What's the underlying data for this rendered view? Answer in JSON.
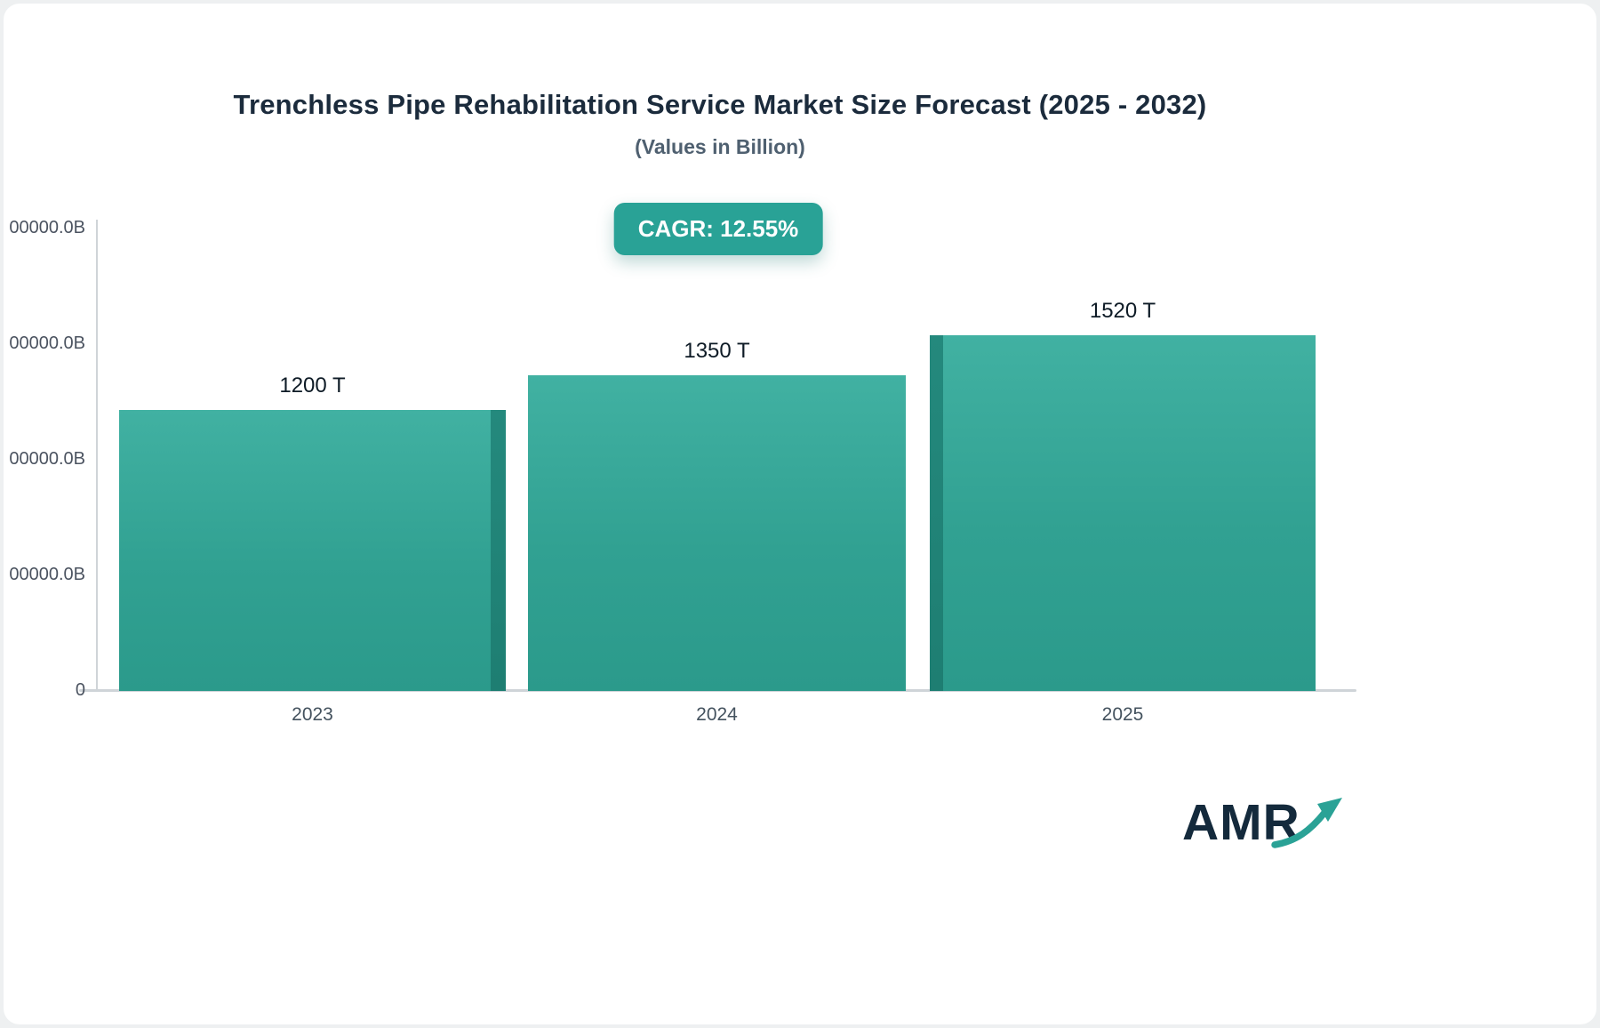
{
  "title": "Trenchless Pipe Rehabilitation Service Market Size Forecast (2025 - 2032)",
  "subtitle": "(Values in Billion)",
  "badge": {
    "label": "CAGR: 12.55%"
  },
  "chart_data": {
    "type": "bar",
    "title": "Trenchless Pipe Rehabilitation Service Market Size Forecast (2025 - 2032)",
    "subtitle": "(Values in Billion)",
    "categories": [
      "2023",
      "2024",
      "2025"
    ],
    "values": [
      1200,
      1350,
      1520
    ],
    "value_labels": [
      "1200 T",
      "1350 T",
      "1520 T"
    ],
    "value_unit": "T",
    "cagr": "12.55%",
    "xlabel": "",
    "ylabel": "",
    "y_ticks": [
      "00000.0B",
      "00000.0B",
      "00000.0B",
      "00000.0B",
      "0"
    ],
    "ylim": [
      0,
      1976
    ],
    "grid": false,
    "legend": false
  },
  "colors": {
    "bar_top": "#41b1a2",
    "bar_bottom": "#2b9a8b",
    "bar_side": "#1e7e72",
    "badge_bg": "#29a296",
    "title_text": "#1b2b3c",
    "subtitle_text": "#4f6070",
    "axis_line": "#cfd4d8"
  },
  "logo": {
    "text": "AMR"
  }
}
